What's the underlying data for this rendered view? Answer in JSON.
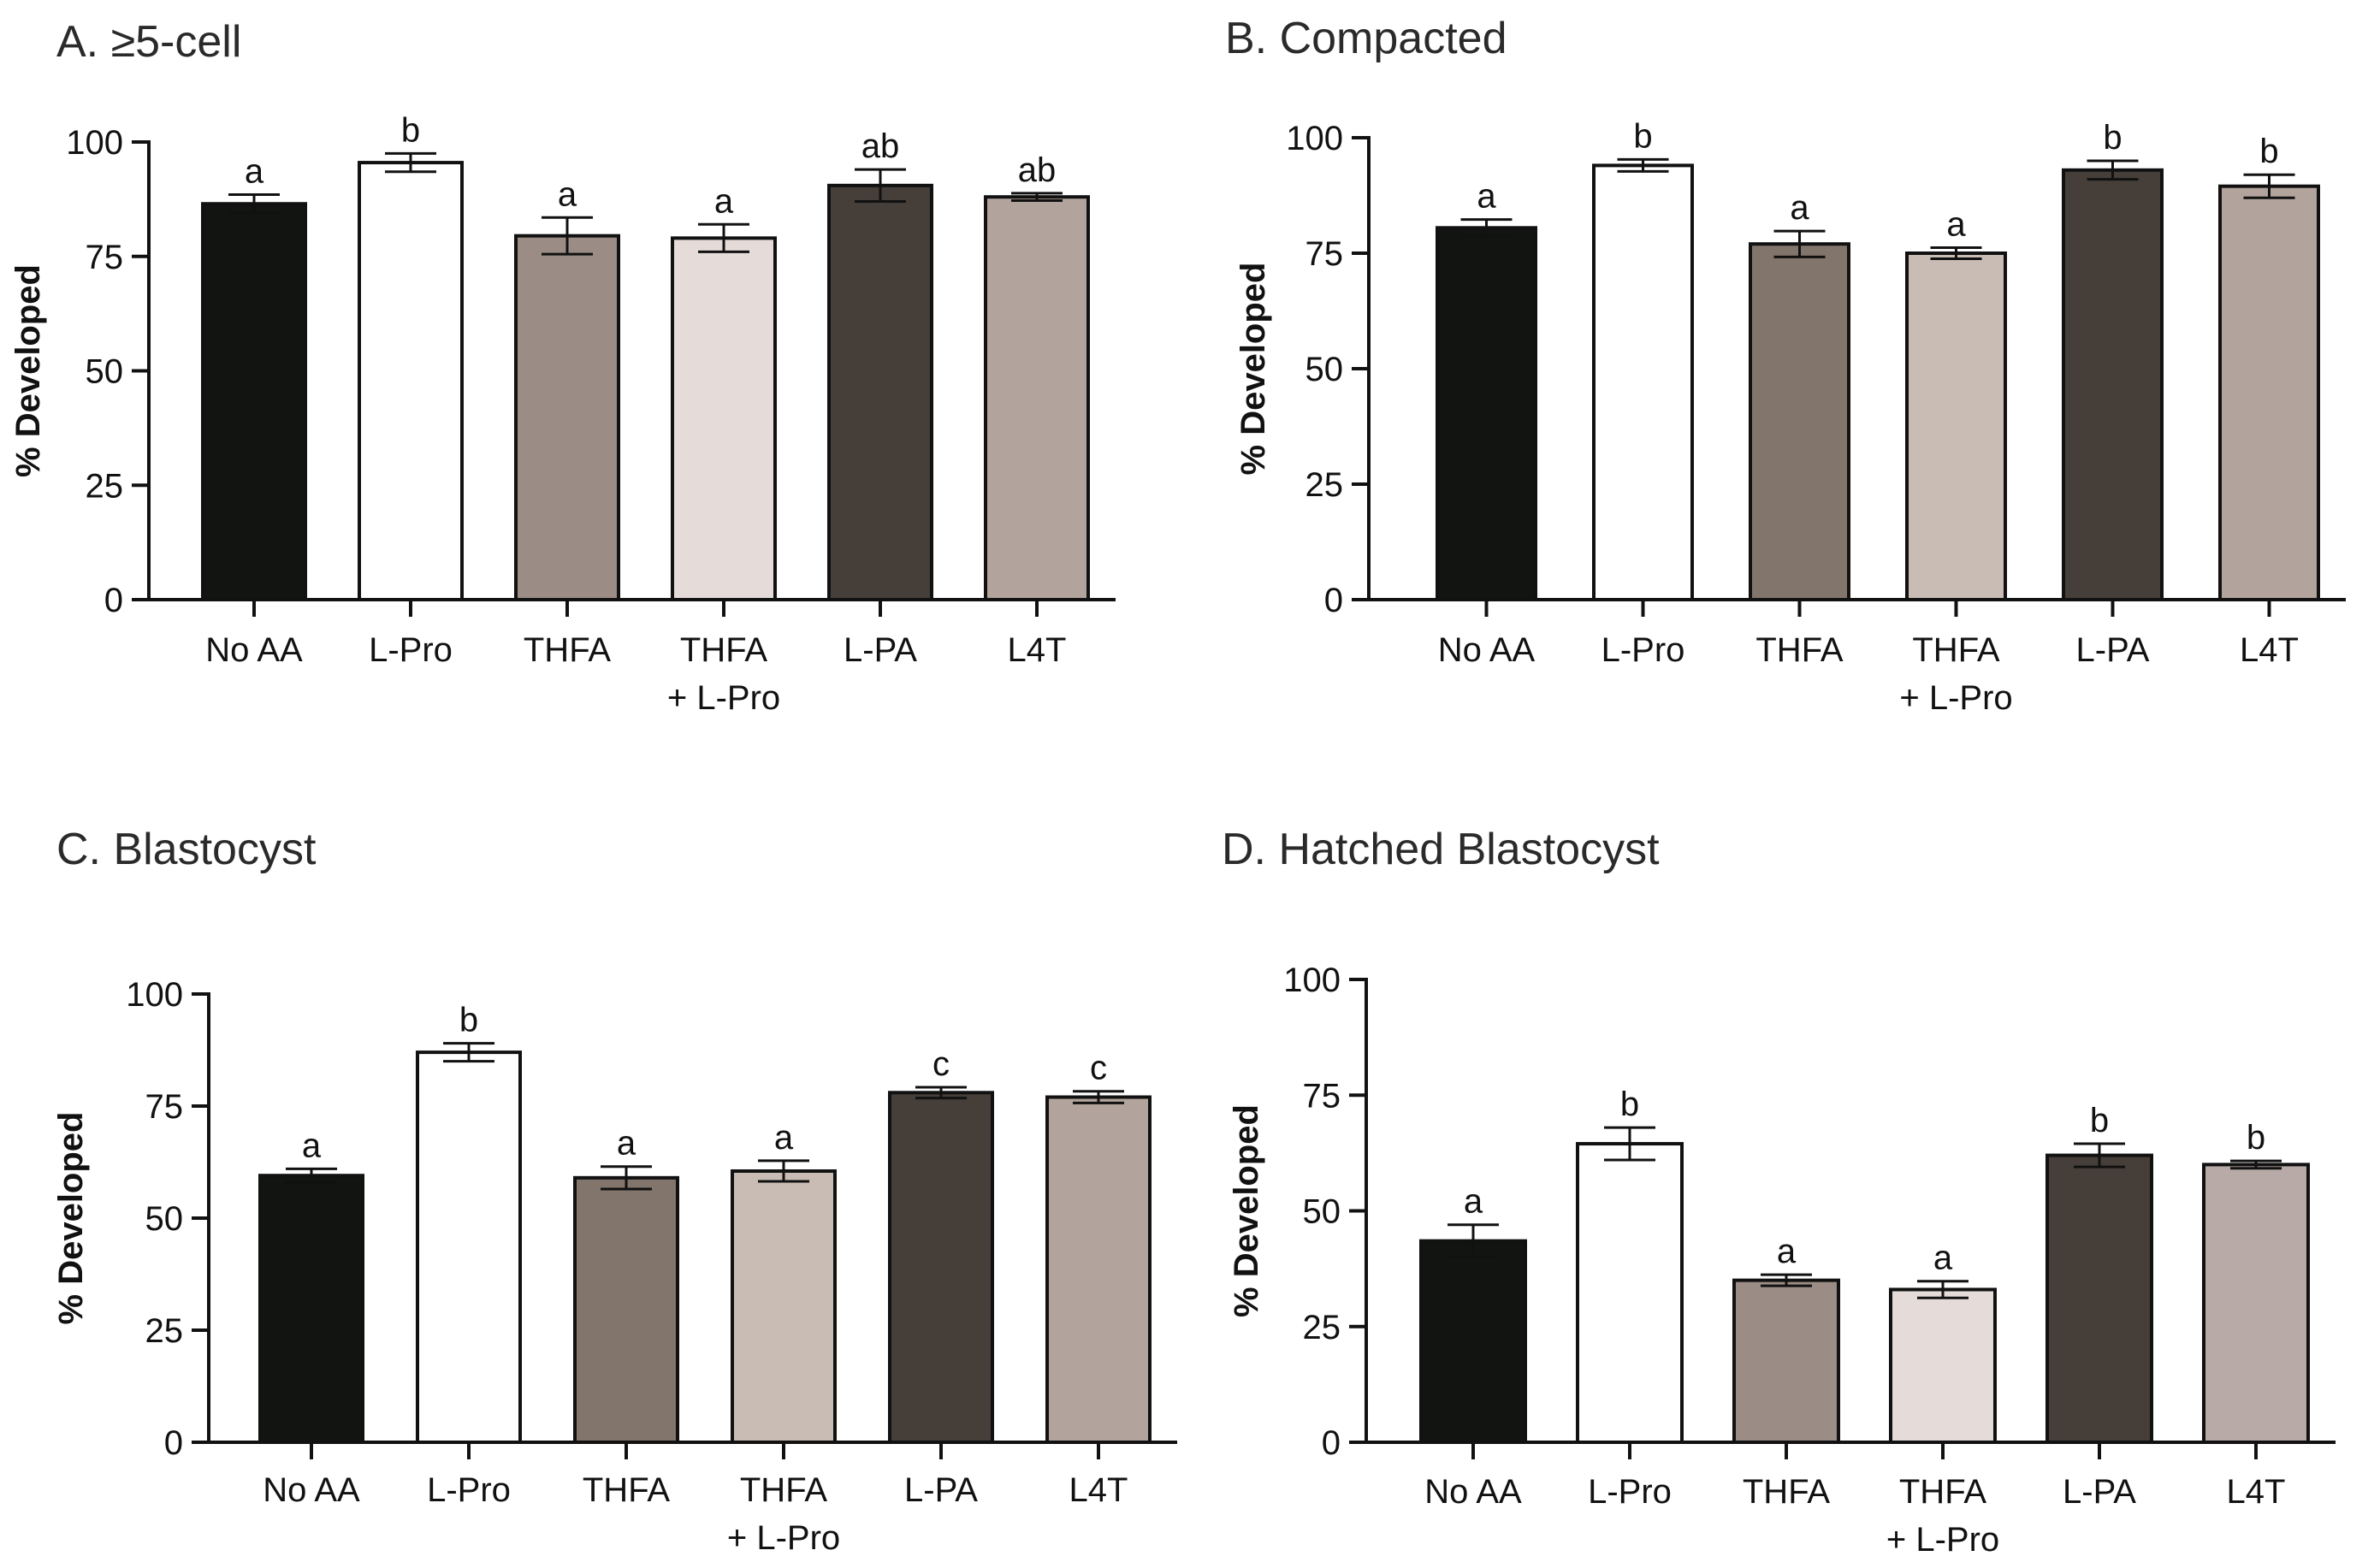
{
  "chart_data": [
    {
      "type": "bar",
      "title": "A. ≥5-cell",
      "ylabel": "% Developed",
      "ylim": [
        0,
        100
      ],
      "yticks": [
        0,
        25,
        50,
        75,
        100
      ],
      "categories": [
        [
          "No AA"
        ],
        [
          "L-Pro"
        ],
        [
          "THFA"
        ],
        [
          "THFA",
          "+ L-Pro"
        ],
        [
          "L-PA"
        ],
        [
          "L4T"
        ]
      ],
      "values": [
        86.5,
        95.5,
        79.5,
        79,
        90.5,
        88
      ],
      "errors": [
        2,
        2,
        4,
        3,
        3.5,
        0.8
      ],
      "labels": [
        "a",
        "b",
        "a",
        "a",
        "ab",
        "ab"
      ],
      "colors": [
        "#111411",
        "#ffffff",
        "#9b8d86",
        "#e5dcda",
        "#453e39",
        "#b2a49c"
      ],
      "grid": false,
      "legend": "none"
    },
    {
      "type": "bar",
      "title": "B. Compacted",
      "ylabel": "% Developed",
      "ylim": [
        0,
        100
      ],
      "yticks": [
        0,
        25,
        50,
        75,
        100
      ],
      "categories": [
        [
          "No AA"
        ],
        [
          "L-Pro"
        ],
        [
          "THFA"
        ],
        [
          "THFA",
          "+ L-Pro"
        ],
        [
          "L-PA"
        ],
        [
          "L4T"
        ]
      ],
      "values": [
        80.5,
        94,
        77,
        75,
        93,
        89.5
      ],
      "errors": [
        1.8,
        1.3,
        2.8,
        1.2,
        2,
        2.5
      ],
      "labels": [
        "a",
        "b",
        "a",
        "a",
        "b",
        "b"
      ],
      "colors": [
        "#111411",
        "#ffffff",
        "#82756c",
        "#c9bcb4",
        "#453e39",
        "#b2a49c"
      ],
      "grid": false,
      "legend": "none"
    },
    {
      "type": "bar",
      "title": "C. Blastocyst",
      "ylabel": "% Developed",
      "ylim": [
        0,
        100
      ],
      "yticks": [
        0,
        25,
        50,
        75,
        100
      ],
      "categories": [
        [
          "No AA"
        ],
        [
          "L-Pro"
        ],
        [
          "THFA"
        ],
        [
          "THFA",
          "+ L-Pro"
        ],
        [
          "L-PA"
        ],
        [
          "L4T"
        ]
      ],
      "values": [
        59.5,
        87,
        59,
        60.5,
        78,
        77
      ],
      "errors": [
        1.5,
        2,
        2.5,
        2.3,
        1.2,
        1.3
      ],
      "labels": [
        "a",
        "b",
        "a",
        "a",
        "c",
        "c"
      ],
      "colors": [
        "#111411",
        "#ffffff",
        "#82756c",
        "#c9bcb4",
        "#453e39",
        "#b2a49c"
      ],
      "grid": false,
      "legend": "none"
    },
    {
      "type": "bar",
      "title": "D. Hatched Blastocyst",
      "ylabel": "% Developed",
      "ylim": [
        0,
        100
      ],
      "yticks": [
        0,
        25,
        50,
        75,
        100
      ],
      "categories": [
        [
          "No AA"
        ],
        [
          "L-Pro"
        ],
        [
          "THFA"
        ],
        [
          "THFA",
          "+ L-Pro"
        ],
        [
          "L-PA"
        ],
        [
          "L4T"
        ]
      ],
      "values": [
        43.5,
        64.5,
        35,
        33,
        62,
        60
      ],
      "errors": [
        3.5,
        3.5,
        1.2,
        1.8,
        2.5,
        0.8
      ],
      "labels": [
        "a",
        "b",
        "a",
        "a",
        "b",
        "b"
      ],
      "colors": [
        "#111411",
        "#ffffff",
        "#9b8d86",
        "#e5dcda",
        "#453e39",
        "#b8aaa6"
      ],
      "grid": false,
      "legend": "none"
    }
  ]
}
